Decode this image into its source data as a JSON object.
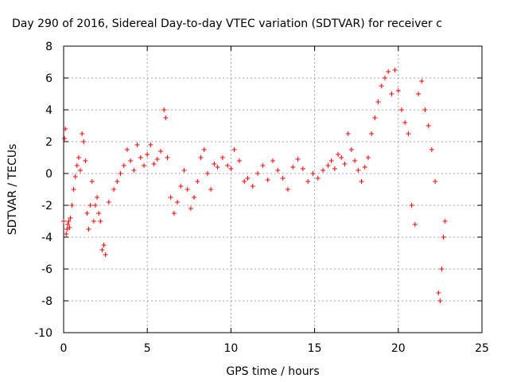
{
  "chart_data": {
    "type": "scatter",
    "title": "Day 290 of 2016, Sidereal Day-to-day VTEC variation (SDTVAR) for receiver c",
    "xlabel": "GPS time / hours",
    "ylabel": "SDTVAR / TECUs",
    "xlim": [
      0,
      25
    ],
    "ylim": [
      -10,
      8
    ],
    "xticks": [
      0,
      5,
      10,
      15,
      20,
      25
    ],
    "yticks": [
      -10,
      -8,
      -6,
      -4,
      -2,
      0,
      2,
      4,
      6,
      8
    ],
    "grid": true,
    "marker": "+",
    "color": "#ff0000",
    "series": [
      {
        "name": "SDTVAR",
        "x": [
          0.0,
          0.05,
          0.1,
          0.15,
          0.2,
          0.25,
          0.3,
          0.35,
          0.4,
          0.5,
          0.6,
          0.7,
          0.8,
          0.9,
          1.0,
          1.1,
          1.2,
          1.3,
          1.4,
          1.5,
          1.6,
          1.7,
          1.8,
          1.9,
          2.0,
          2.1,
          2.2,
          2.3,
          2.4,
          2.5,
          2.7,
          3.0,
          3.2,
          3.4,
          3.6,
          3.8,
          4.0,
          4.2,
          4.4,
          4.6,
          4.8,
          5.0,
          5.2,
          5.4,
          5.6,
          5.8,
          6.0,
          6.1,
          6.2,
          6.4,
          6.6,
          6.8,
          7.0,
          7.2,
          7.4,
          7.6,
          7.8,
          8.0,
          8.2,
          8.4,
          8.6,
          8.8,
          9.0,
          9.2,
          9.5,
          9.8,
          10.0,
          10.2,
          10.5,
          10.8,
          11.0,
          11.3,
          11.6,
          11.9,
          12.2,
          12.5,
          12.8,
          13.1,
          13.4,
          13.7,
          14.0,
          14.3,
          14.6,
          14.9,
          15.2,
          15.5,
          15.8,
          16.0,
          16.2,
          16.4,
          16.6,
          16.8,
          17.0,
          17.2,
          17.4,
          17.6,
          17.8,
          18.0,
          18.2,
          18.4,
          18.6,
          18.8,
          19.0,
          19.2,
          19.4,
          19.6,
          19.8,
          20.0,
          20.2,
          20.4,
          20.6,
          20.8,
          21.0,
          21.2,
          21.4,
          21.6,
          21.8,
          22.0,
          22.2,
          22.4,
          22.5,
          22.6,
          22.7,
          22.8
        ],
        "y": [
          -3.0,
          2.2,
          2.8,
          -3.8,
          -3.5,
          -3.2,
          -3.0,
          -3.4,
          -2.8,
          -2.0,
          -1.0,
          -0.2,
          0.5,
          1.0,
          0.2,
          2.5,
          2.0,
          0.8,
          -2.5,
          -3.5,
          -2.0,
          -0.5,
          -3.0,
          -2.0,
          -1.5,
          -2.5,
          -3.0,
          -4.8,
          -4.5,
          -5.1,
          -1.8,
          -1.0,
          -0.5,
          0.0,
          0.5,
          1.5,
          0.8,
          0.2,
          1.8,
          1.0,
          0.5,
          1.2,
          1.8,
          0.6,
          0.9,
          1.4,
          4.0,
          3.5,
          1.0,
          -1.5,
          -2.5,
          -1.8,
          -0.8,
          0.2,
          -1.0,
          -2.2,
          -1.5,
          -0.5,
          1.0,
          1.5,
          0.0,
          -1.0,
          0.6,
          0.4,
          1.0,
          0.5,
          0.3,
          1.5,
          0.8,
          -0.5,
          -0.3,
          -0.8,
          0.0,
          0.5,
          -0.4,
          0.8,
          0.2,
          -0.3,
          -1.0,
          0.4,
          0.9,
          0.3,
          -0.5,
          0.0,
          -0.3,
          0.2,
          0.5,
          0.8,
          0.3,
          1.2,
          1.0,
          0.6,
          2.5,
          1.5,
          0.8,
          0.2,
          -0.5,
          0.4,
          1.0,
          2.5,
          3.5,
          4.5,
          5.5,
          6.0,
          6.4,
          5.0,
          6.5,
          5.2,
          4.0,
          3.2,
          2.5,
          -2.0,
          -3.2,
          5.0,
          5.8,
          4.0,
          3.0,
          1.5,
          -0.5,
          -7.5,
          -8.0,
          -6.0,
          -4.0,
          -3.0
        ]
      }
    ]
  }
}
